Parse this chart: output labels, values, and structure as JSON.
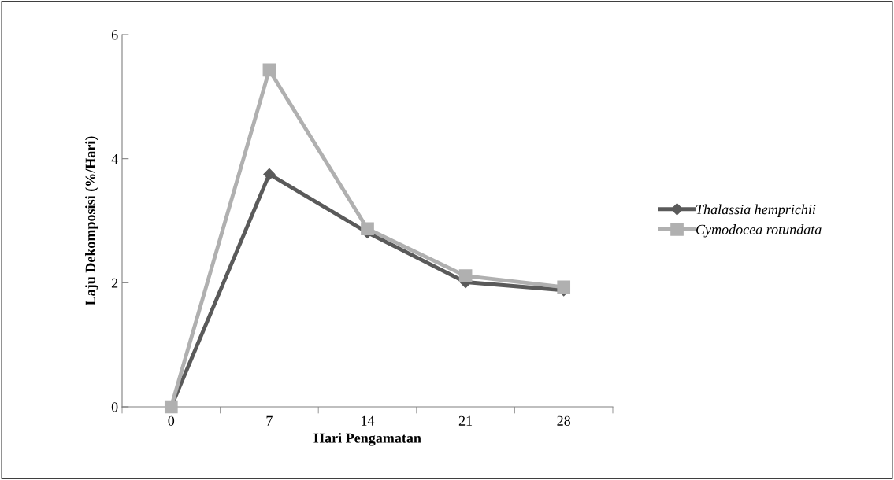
{
  "chart_data": {
    "type": "line",
    "xlabel": "Hari Pengamatan",
    "ylabel": "Laju Dekomposisi (%/Hari)",
    "categories": [
      "0",
      "7",
      "14",
      "21",
      "28"
    ],
    "series": [
      {
        "name": "Thalassia hemprichii",
        "color": "#5a5a5a",
        "marker": "diamond",
        "values": [
          0,
          3.75,
          2.81,
          2.01,
          1.88
        ]
      },
      {
        "name": "Cymodocea rotundata",
        "color": "#b0b0b0",
        "marker": "square",
        "values": [
          0,
          5.43,
          2.87,
          2.11,
          1.93
        ]
      }
    ],
    "ylim": [
      0,
      6
    ],
    "yticks": [
      0,
      2,
      4,
      6
    ],
    "grid": false,
    "legend": "right",
    "line_style": "solid"
  }
}
